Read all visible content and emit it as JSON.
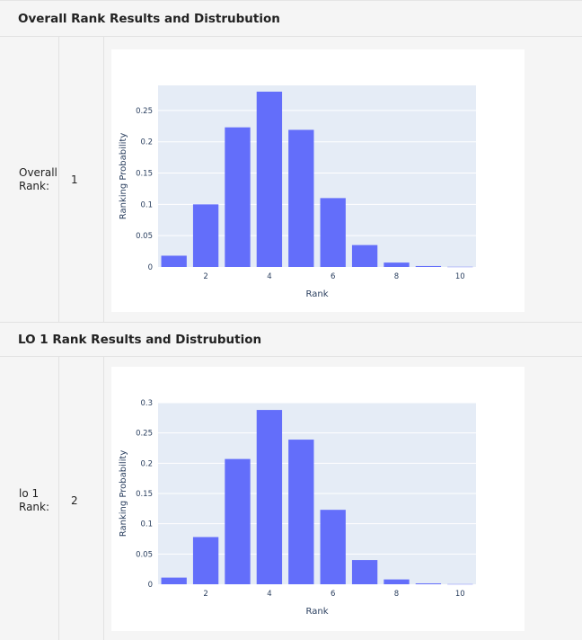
{
  "sections": [
    {
      "header": "Overall Rank Results and Distrubution",
      "label": "Overall Rank:",
      "rank": "1"
    },
    {
      "header": "LO 1 Rank Results and Distrubution",
      "label": "lo 1 Rank:",
      "rank": "2"
    }
  ],
  "chart_data": [
    {
      "type": "bar",
      "x": [
        1,
        2,
        3,
        4,
        5,
        6,
        7,
        8,
        9,
        10
      ],
      "values": [
        0.018,
        0.1,
        0.223,
        0.28,
        0.219,
        0.11,
        0.035,
        0.007,
        0.0015,
        0.0003
      ],
      "xlabel": "Rank",
      "ylabel": "Ranking Probability",
      "ylim": [
        0,
        0.29
      ],
      "xticks": [
        "2",
        "4",
        "6",
        "8",
        "10"
      ],
      "yticks": [
        "0",
        "0.05",
        "0.1",
        "0.15",
        "0.2",
        "0.25"
      ],
      "grid": true,
      "bar_color": "#636efa",
      "plot_bg": "#e5ecf6"
    },
    {
      "type": "bar",
      "x": [
        1,
        2,
        3,
        4,
        5,
        6,
        7,
        8,
        9,
        10
      ],
      "values": [
        0.011,
        0.078,
        0.207,
        0.288,
        0.239,
        0.123,
        0.04,
        0.008,
        0.0015,
        0.0003
      ],
      "xlabel": "Rank",
      "ylabel": "Ranking Probability",
      "ylim": [
        0,
        0.3
      ],
      "xticks": [
        "2",
        "4",
        "6",
        "8",
        "10"
      ],
      "yticks": [
        "0",
        "0.05",
        "0.1",
        "0.15",
        "0.2",
        "0.25",
        "0.3"
      ],
      "grid": true,
      "bar_color": "#636efa",
      "plot_bg": "#e5ecf6"
    }
  ]
}
